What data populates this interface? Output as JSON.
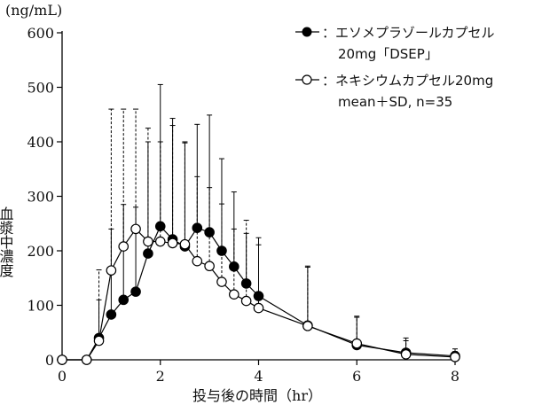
{
  "chart_data": {
    "type": "line",
    "unit_label": "(ng/mL)",
    "ylabel": "血漿中濃度",
    "xlabel": "投与後の時間（hr）",
    "xlim": [
      0,
      8
    ],
    "ylim": [
      0,
      600
    ],
    "x_ticks": [
      0,
      2,
      4,
      6,
      8
    ],
    "y_ticks": [
      0,
      100,
      200,
      300,
      400,
      500,
      600
    ],
    "x_tick_labels": [
      "0",
      "2",
      "4",
      "6",
      "8"
    ],
    "y_tick_labels": [
      "0",
      "100",
      "200",
      "300",
      "400",
      "500",
      "600"
    ],
    "grid": false,
    "legend_position": "top-right",
    "legend": {
      "line1": "：エソメプラゾールカプセル",
      "line2": "20mg「DSEP」",
      "line3": "：ネキシウムカプセル20mg",
      "line4": "mean＋SD, n=35"
    },
    "series": [
      {
        "name": "エソメプラゾールカプセル 20mg「DSEP」",
        "marker": "filled-circle",
        "error_style": "solid",
        "color": "#000000",
        "x": [
          0,
          0.5,
          0.75,
          1,
          1.25,
          1.5,
          1.75,
          2,
          2.25,
          2.5,
          2.75,
          3,
          3.25,
          3.5,
          3.75,
          4,
          5,
          6,
          7,
          8
        ],
        "mean": [
          0,
          0,
          40,
          83,
          110,
          125,
          195,
          245,
          221,
          208,
          242,
          234,
          200,
          171,
          140,
          117,
          63,
          27,
          13,
          7
        ],
        "sd_upper": [
          0,
          0,
          110,
          240,
          285,
          280,
          400,
          505,
          443,
          400,
          432,
          449,
          369,
          308,
          232,
          224,
          170,
          78,
          40,
          20
        ]
      },
      {
        "name": "ネキシウムカプセル20mg",
        "marker": "open-circle",
        "error_style": "dashed",
        "color": "#000000",
        "x": [
          0,
          0.5,
          0.75,
          1,
          1.25,
          1.5,
          1.75,
          2,
          2.25,
          2.5,
          2.75,
          3,
          3.25,
          3.5,
          3.75,
          4,
          5,
          6,
          7,
          8
        ],
        "mean": [
          0,
          0,
          35,
          164,
          208,
          240,
          217,
          217,
          214,
          212,
          181,
          172,
          143,
          120,
          108,
          95,
          62,
          30,
          10,
          5
        ],
        "sd_upper": [
          0,
          0,
          165,
          460,
          460,
          460,
          425,
          400,
          430,
          398,
          336,
          316,
          286,
          240,
          256,
          211,
          172,
          80,
          35,
          15
        ]
      }
    ]
  }
}
